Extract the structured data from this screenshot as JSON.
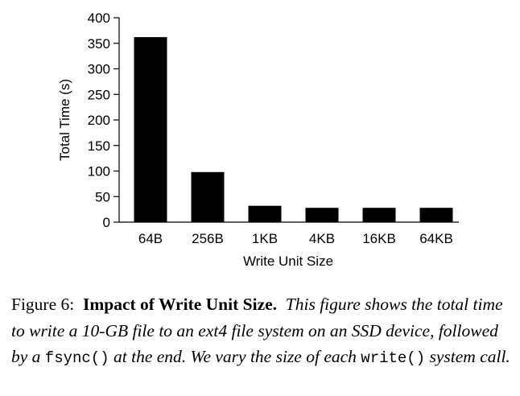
{
  "chart_data": {
    "type": "bar",
    "categories": [
      "64B",
      "256B",
      "1KB",
      "4KB",
      "16KB",
      "64KB"
    ],
    "values": [
      362,
      98,
      32,
      28,
      28,
      28
    ],
    "xlabel": "Write Unit Size",
    "ylabel": "Total Time (s)",
    "ylim": [
      0,
      400
    ],
    "yticks": [
      0,
      50,
      100,
      150,
      200,
      250,
      300,
      350,
      400
    ],
    "bar_color": "#000000",
    "grid": false
  },
  "caption": {
    "figure_label": "Figure 6:",
    "title": "Impact of Write Unit Size.",
    "text_1": "This figure shows the total time to write a 10-GB file to an ext4 file system on an SSD device, followed by a",
    "code_1": "fsync()",
    "text_2": "at the end. We vary the size of each",
    "code_2": "write()",
    "text_3": "system call."
  }
}
